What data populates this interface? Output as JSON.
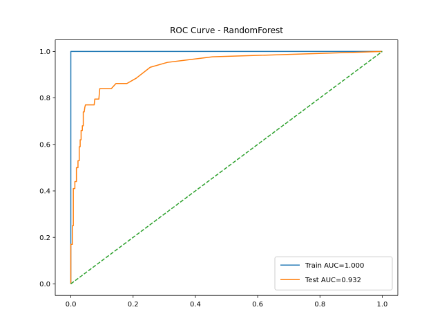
{
  "chart_data": {
    "type": "line",
    "title": "ROC Curve - RandomForest",
    "xlabel": "",
    "ylabel": "",
    "xlim": [
      -0.05,
      1.05
    ],
    "ylim": [
      -0.05,
      1.05
    ],
    "grid": false,
    "legend_placement": "lower-right",
    "x_ticks": [
      {
        "value": 0.0,
        "label": "0.0"
      },
      {
        "value": 0.2,
        "label": "0.2"
      },
      {
        "value": 0.4,
        "label": "0.4"
      },
      {
        "value": 0.6,
        "label": "0.6"
      },
      {
        "value": 0.8,
        "label": "0.8"
      },
      {
        "value": 1.0,
        "label": "1.0"
      }
    ],
    "y_ticks": [
      {
        "value": 0.0,
        "label": "0.0"
      },
      {
        "value": 0.2,
        "label": "0.2"
      },
      {
        "value": 0.4,
        "label": "0.4"
      },
      {
        "value": 0.6,
        "label": "0.6"
      },
      {
        "value": 0.8,
        "label": "0.8"
      },
      {
        "value": 1.0,
        "label": "1.0"
      }
    ],
    "series": [
      {
        "name": "Train AUC=1.000",
        "color": "#1f77b4",
        "style": "solid",
        "points": [
          [
            0.0,
            0.0
          ],
          [
            0.0,
            1.0
          ],
          [
            1.0,
            1.0
          ]
        ]
      },
      {
        "name": "Test AUC=0.932",
        "color": "#ff7f0e",
        "style": "solid",
        "points": [
          [
            0.0,
            0.0
          ],
          [
            0.0,
            0.17
          ],
          [
            0.005,
            0.17
          ],
          [
            0.005,
            0.25
          ],
          [
            0.008,
            0.25
          ],
          [
            0.008,
            0.41
          ],
          [
            0.013,
            0.41
          ],
          [
            0.013,
            0.44
          ],
          [
            0.018,
            0.44
          ],
          [
            0.018,
            0.5
          ],
          [
            0.023,
            0.5
          ],
          [
            0.023,
            0.53
          ],
          [
            0.027,
            0.53
          ],
          [
            0.027,
            0.59
          ],
          [
            0.03,
            0.59
          ],
          [
            0.03,
            0.62
          ],
          [
            0.033,
            0.62
          ],
          [
            0.033,
            0.66
          ],
          [
            0.037,
            0.66
          ],
          [
            0.037,
            0.68
          ],
          [
            0.04,
            0.68
          ],
          [
            0.04,
            0.74
          ],
          [
            0.043,
            0.74
          ],
          [
            0.045,
            0.76
          ],
          [
            0.047,
            0.77
          ],
          [
            0.075,
            0.77
          ],
          [
            0.077,
            0.795
          ],
          [
            0.09,
            0.795
          ],
          [
            0.093,
            0.84
          ],
          [
            0.13,
            0.84
          ],
          [
            0.145,
            0.862
          ],
          [
            0.18,
            0.862
          ],
          [
            0.21,
            0.885
          ],
          [
            0.255,
            0.932
          ],
          [
            0.31,
            0.953
          ],
          [
            0.455,
            0.977
          ],
          [
            1.0,
            1.0
          ]
        ]
      },
      {
        "name": "",
        "color": "#2ca02c",
        "style": "dashed",
        "points": [
          [
            0.0,
            0.0
          ],
          [
            1.0,
            1.0
          ]
        ]
      }
    ]
  }
}
